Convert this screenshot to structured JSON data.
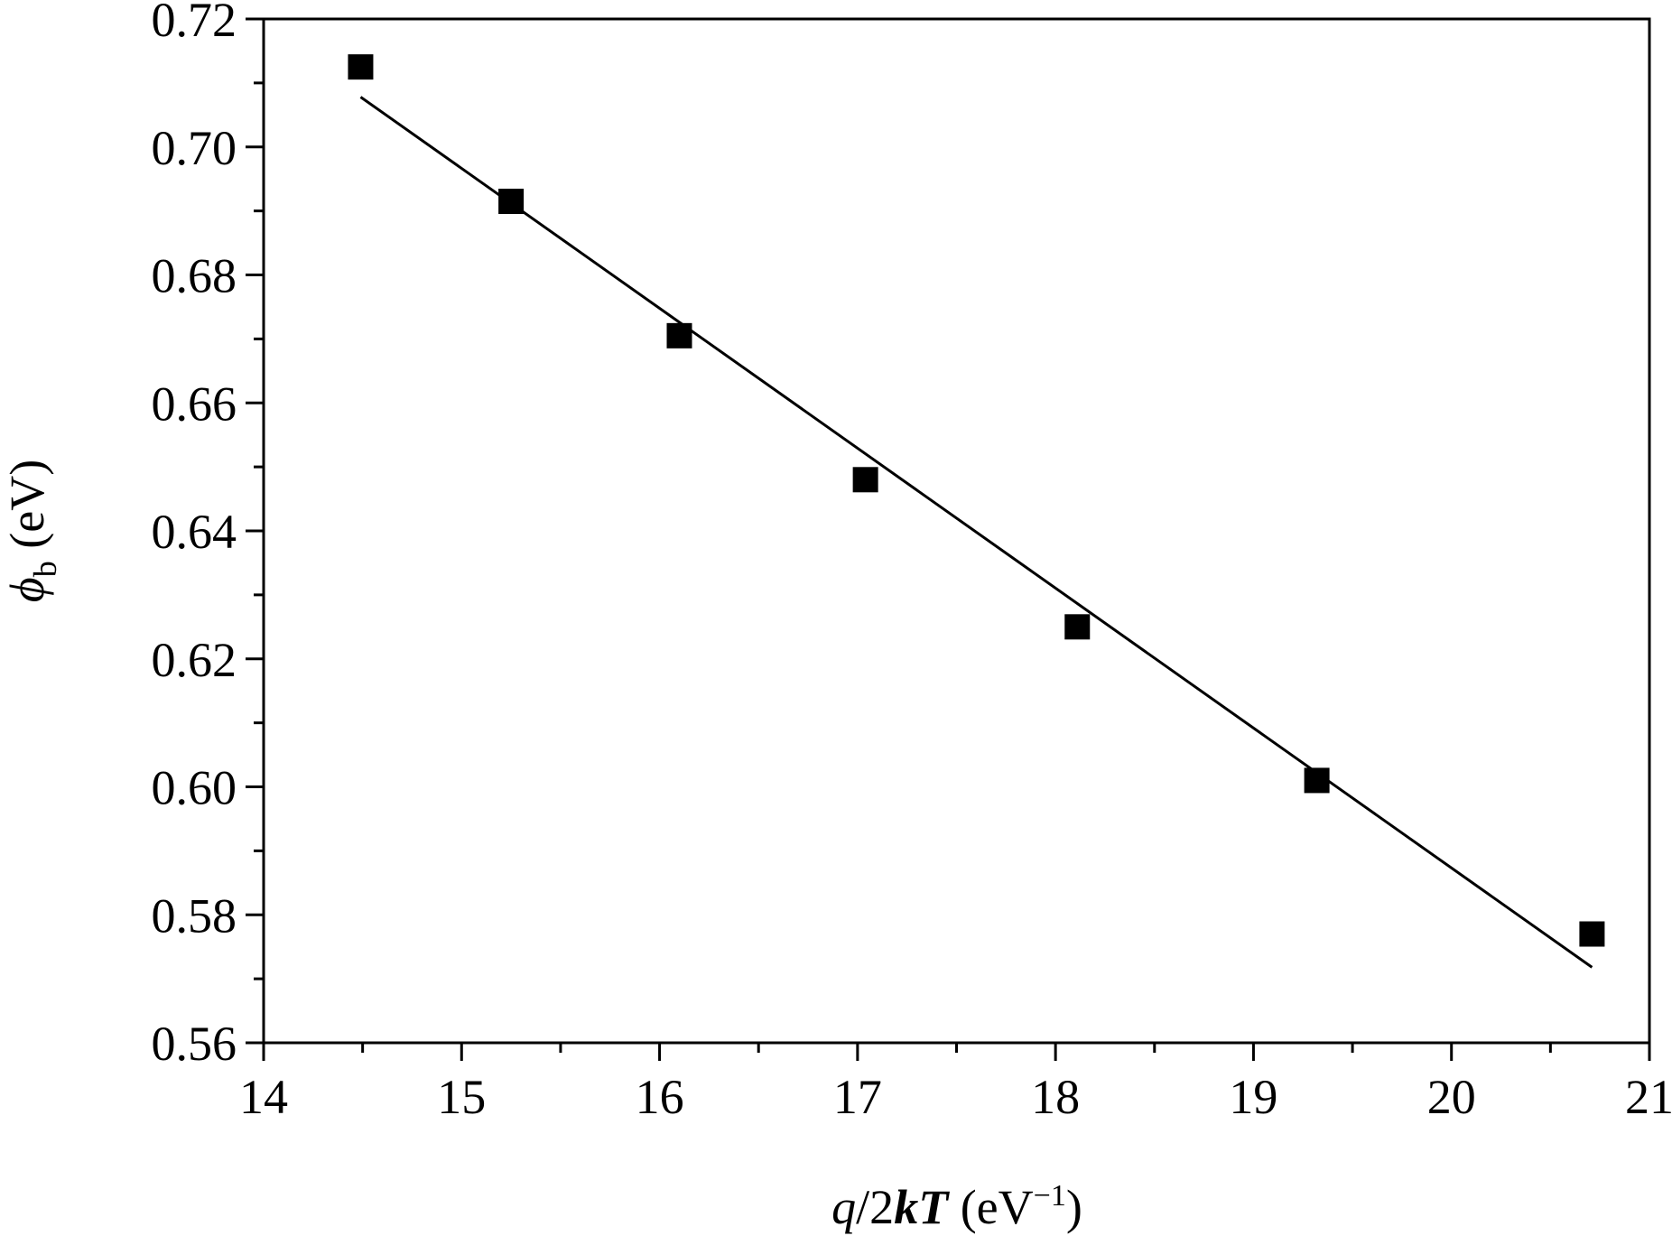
{
  "chart_data": {
    "type": "scatter",
    "xlabel": {
      "var_q": "q",
      "slash_two": "/2",
      "var_kT": "kT",
      "unit_open": " (eV",
      "unit_exp": "−1",
      "unit_close": ")"
    },
    "ylabel": {
      "symbol": "ϕ",
      "subscript": "b",
      "unit": " (eV)"
    },
    "xlim": [
      14,
      21
    ],
    "ylim": [
      0.56,
      0.72
    ],
    "x_ticks": [
      "14",
      "15",
      "16",
      "17",
      "18",
      "19",
      "20",
      "21"
    ],
    "y_ticks": [
      "0.56",
      "0.58",
      "0.60",
      "0.62",
      "0.64",
      "0.66",
      "0.68",
      "0.70",
      "0.72"
    ],
    "grid": false,
    "series": [
      {
        "kind": "points",
        "marker": "square",
        "x": [
          14.49,
          15.25,
          16.1,
          17.04,
          18.11,
          19.32,
          20.71
        ],
        "y": [
          0.7125,
          0.6915,
          0.6705,
          0.648,
          0.625,
          0.601,
          0.577
        ]
      },
      {
        "kind": "fit-line",
        "x": [
          14.49,
          20.71
        ],
        "y": [
          0.7078,
          0.5718
        ]
      }
    ],
    "colors": {
      "marker": "#000000",
      "line": "#000000",
      "axis": "#000000"
    }
  }
}
